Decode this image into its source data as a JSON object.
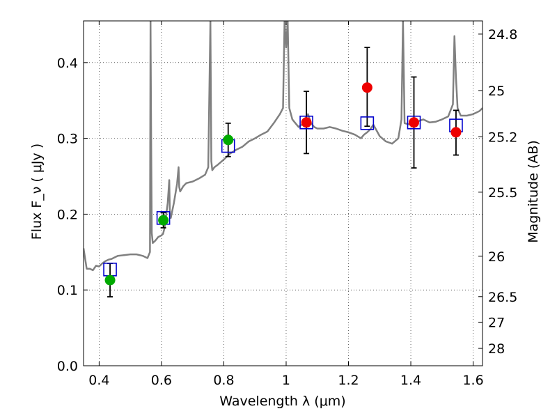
{
  "chart_data": {
    "type": "scatter",
    "xlabel": "Wavelength  λ (μm)",
    "ylabel": "Flux  F_ν  ( μJy )",
    "ylabel_right": "Magnitude (AB)",
    "xlim": [
      0.35,
      1.63
    ],
    "ylim": [
      0.0,
      0.455
    ],
    "grid": true,
    "x_ticks": [
      0.4,
      0.6,
      0.8,
      1.0,
      1.2,
      1.4,
      1.6
    ],
    "x_tick_labels": [
      "0.4",
      "0.6",
      "0.8",
      "1",
      "1.2",
      "1.4",
      "1.6"
    ],
    "y_ticks": [
      0.0,
      0.1,
      0.2,
      0.3,
      0.4
    ],
    "y_tick_labels": [
      "0.0",
      "0.1",
      "0.2",
      "0.3",
      "0.4"
    ],
    "mag_ticks": [
      {
        "label": "24.8",
        "flux": 0.4376
      },
      {
        "label": "25",
        "flux": 0.3631
      },
      {
        "label": "25.2",
        "flux": 0.3021
      },
      {
        "label": "25.5",
        "flux": 0.229
      },
      {
        "label": "26",
        "flux": 0.1445
      },
      {
        "label": "26.5",
        "flux": 0.0912
      },
      {
        "label": "27",
        "flux": 0.0575
      },
      {
        "label": "28",
        "flux": 0.0229
      }
    ],
    "colors": {
      "model": "#808080",
      "optical_points": "#00aa00",
      "nir_points": "#ee0000",
      "model_photometry": "#0000cc",
      "errorbar": "#000000"
    },
    "observed": [
      {
        "x": 0.435,
        "y": 0.113,
        "err_lo": 0.022,
        "err_hi": 0.022,
        "band": "optical"
      },
      {
        "x": 0.606,
        "y": 0.192,
        "err_lo": 0.01,
        "err_hi": 0.01,
        "band": "optical"
      },
      {
        "x": 0.814,
        "y": 0.298,
        "err_lo": 0.022,
        "err_hi": 0.022,
        "band": "optical"
      },
      {
        "x": 1.065,
        "y": 0.321,
        "err_lo": 0.041,
        "err_hi": 0.041,
        "band": "nir"
      },
      {
        "x": 1.26,
        "y": 0.367,
        "err_lo": 0.051,
        "err_hi": 0.053,
        "band": "nir"
      },
      {
        "x": 1.41,
        "y": 0.321,
        "err_lo": 0.06,
        "err_hi": 0.06,
        "band": "nir"
      },
      {
        "x": 1.545,
        "y": 0.308,
        "err_lo": 0.03,
        "err_hi": 0.029,
        "band": "nir"
      }
    ],
    "model_photometry": [
      {
        "x": 0.435,
        "y": 0.127
      },
      {
        "x": 0.606,
        "y": 0.195
      },
      {
        "x": 0.814,
        "y": 0.29
      },
      {
        "x": 1.065,
        "y": 0.321
      },
      {
        "x": 1.26,
        "y": 0.32
      },
      {
        "x": 1.41,
        "y": 0.321
      },
      {
        "x": 1.545,
        "y": 0.317
      }
    ],
    "model_spectrum": {
      "x": [
        0.35,
        0.36,
        0.37,
        0.38,
        0.39,
        0.4,
        0.41,
        0.42,
        0.43,
        0.44,
        0.45,
        0.46,
        0.48,
        0.5,
        0.52,
        0.54,
        0.555,
        0.563,
        0.565,
        0.567,
        0.569,
        0.572,
        0.58,
        0.59,
        0.6,
        0.605,
        0.61,
        0.62,
        0.625,
        0.627,
        0.63,
        0.64,
        0.65,
        0.655,
        0.657,
        0.66,
        0.67,
        0.68,
        0.7,
        0.72,
        0.74,
        0.75,
        0.757,
        0.76,
        0.763,
        0.77,
        0.78,
        0.8,
        0.82,
        0.84,
        0.86,
        0.88,
        0.9,
        0.92,
        0.94,
        0.96,
        0.98,
        0.99,
        0.995,
        1.0,
        1.005,
        1.01,
        1.02,
        1.03,
        1.04,
        1.05,
        1.06,
        1.07,
        1.08,
        1.09,
        1.1,
        1.12,
        1.14,
        1.16,
        1.18,
        1.2,
        1.22,
        1.24,
        1.25,
        1.26,
        1.27,
        1.28,
        1.3,
        1.32,
        1.34,
        1.36,
        1.37,
        1.375,
        1.38,
        1.39,
        1.4,
        1.42,
        1.44,
        1.46,
        1.48,
        1.5,
        1.52,
        1.535,
        1.54,
        1.545,
        1.55,
        1.56,
        1.58,
        1.6,
        1.62,
        1.63
      ],
      "y": [
        0.155,
        0.128,
        0.128,
        0.126,
        0.132,
        0.131,
        0.135,
        0.138,
        0.14,
        0.141,
        0.143,
        0.145,
        0.146,
        0.147,
        0.147,
        0.145,
        0.142,
        0.15,
        0.455,
        0.3,
        0.175,
        0.162,
        0.165,
        0.17,
        0.172,
        0.174,
        0.182,
        0.215,
        0.245,
        0.2,
        0.195,
        0.215,
        0.24,
        0.262,
        0.236,
        0.23,
        0.237,
        0.241,
        0.243,
        0.247,
        0.252,
        0.262,
        0.455,
        0.27,
        0.258,
        0.262,
        0.265,
        0.272,
        0.28,
        0.285,
        0.289,
        0.296,
        0.3,
        0.305,
        0.309,
        0.32,
        0.332,
        0.34,
        0.455,
        0.42,
        0.455,
        0.34,
        0.325,
        0.32,
        0.315,
        0.318,
        0.325,
        0.332,
        0.32,
        0.315,
        0.313,
        0.313,
        0.315,
        0.313,
        0.31,
        0.308,
        0.305,
        0.3,
        0.305,
        0.308,
        0.312,
        0.318,
        0.303,
        0.296,
        0.293,
        0.3,
        0.325,
        0.455,
        0.32,
        0.319,
        0.318,
        0.322,
        0.325,
        0.321,
        0.322,
        0.325,
        0.329,
        0.345,
        0.435,
        0.38,
        0.34,
        0.33,
        0.33,
        0.332,
        0.336,
        0.34
      ]
    }
  }
}
